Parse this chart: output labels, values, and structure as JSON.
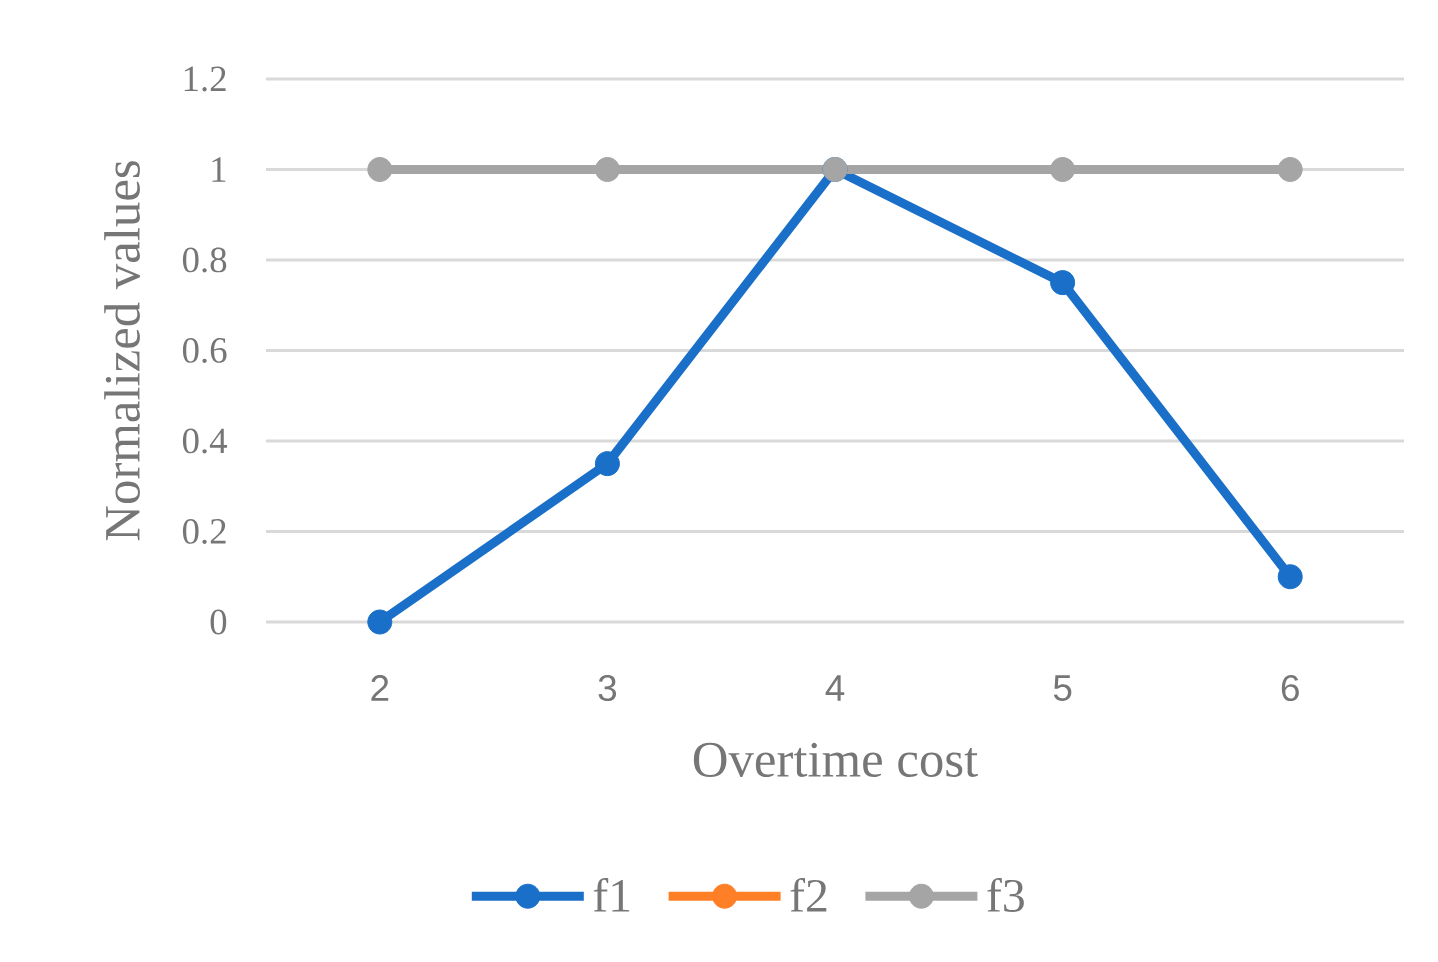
{
  "chart_data": {
    "type": "line",
    "xlabel": "Overtime cost",
    "ylabel": "Normalized values",
    "categories": [
      "2",
      "3",
      "4",
      "5",
      "6"
    ],
    "series": [
      {
        "name": "f1",
        "color": "#1a70c8",
        "values": [
          0,
          0.35,
          1,
          0.75,
          0.1
        ]
      },
      {
        "name": "f2",
        "color": "#ff7f27",
        "values": [
          null,
          null,
          null,
          null,
          null
        ]
      },
      {
        "name": "f3",
        "color": "#a5a5a5",
        "values": [
          1,
          1,
          1,
          1,
          1
        ]
      }
    ],
    "ylim": [
      0,
      1.2
    ],
    "yticks": [
      0,
      0.2,
      0.4,
      0.6,
      0.8,
      1,
      1.2
    ],
    "grid": "y",
    "legend": "bottom",
    "marker": "circle",
    "line_style": "solid"
  }
}
